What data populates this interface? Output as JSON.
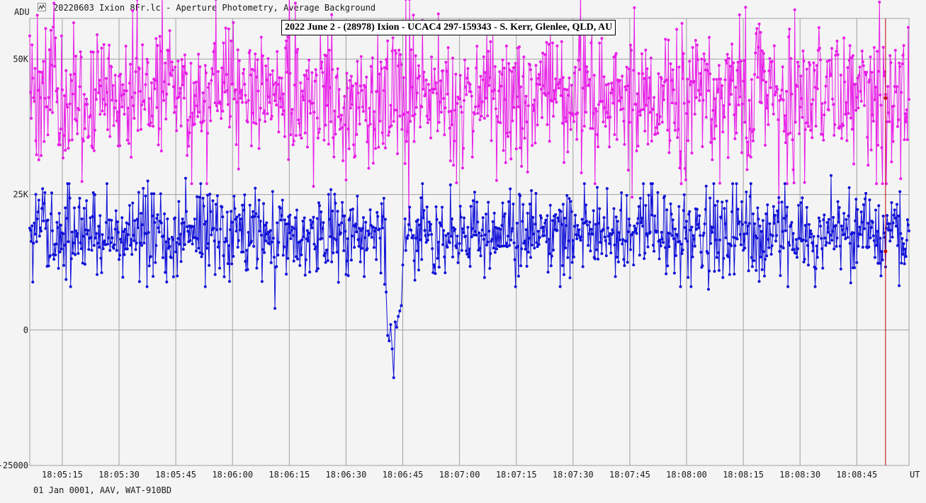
{
  "window": {
    "title": "20220603 Ixion 8Fr.lc - Aperture Photometry, Average Background",
    "icon": "lightcurve-app-icon"
  },
  "footer": {
    "text": "01 Jan 0001, AAV, WAT-910BD"
  },
  "colors": {
    "background": "#f4f4f4",
    "grid": "#a0a0a0",
    "series_upper": "#e81ee8",
    "series_lower": "#1010d8",
    "marker_line": "#c00000"
  },
  "chart_data": {
    "type": "line",
    "title": "2022 June 2 - (28978) Ixion - UCAC4 297-159343 - S. Kerr, Glenlee, QLD, AU",
    "ylabel": "ADU",
    "xlabel": "UT",
    "ylim": [
      -25000,
      57500
    ],
    "y_ticks": [
      {
        "value": 50000,
        "label": "50K"
      },
      {
        "value": 25000,
        "label": "25K"
      },
      {
        "value": 0,
        "label": "0"
      },
      {
        "value": -25000,
        "label": "-25000"
      }
    ],
    "xlim": [
      "18:05:06.4",
      "18:08:58.8"
    ],
    "x_ticks": [
      "18:05:15",
      "18:05:30",
      "18:05:45",
      "18:06:00",
      "18:06:15",
      "18:06:30",
      "18:06:45",
      "18:07:00",
      "18:07:15",
      "18:07:30",
      "18:07:45",
      "18:08:00",
      "18:08:15",
      "18:08:30",
      "18:08:45"
    ],
    "grid": true,
    "legend": "none",
    "cursor_time": "18:08:52.6",
    "series": [
      {
        "role": "comparison",
        "mean_adu": 43200,
        "noise_sd_adu": 6500,
        "dips": [
          {
            "time": "18:06:46.6",
            "value": 19500
          },
          {
            "time": "18:06:21.4",
            "value": 26500
          },
          {
            "time": "18:07:45.6",
            "value": 24500
          },
          {
            "time": "18:08:24.4",
            "value": 23500
          }
        ],
        "peaks": [
          {
            "time": "18:05:41.4",
            "value": 63800
          },
          {
            "time": "18:06:15.0",
            "value": 65000
          },
          {
            "time": "18:07:32.0",
            "value": 62800
          },
          {
            "time": "18:08:51.0",
            "value": 60500
          }
        ]
      },
      {
        "role": "target",
        "mean_adu": 17600,
        "noise_sd_adu": 4100,
        "occultation": {
          "start": "18:06:40.6",
          "end": "18:06:45.6",
          "points": [
            {
              "time": "18:06:40.6",
              "value": 7000
            },
            {
              "time": "18:06:41.0",
              "value": -1000
            },
            {
              "time": "18:06:41.4",
              "value": -2000
            },
            {
              "time": "18:06:41.8",
              "value": 1000
            },
            {
              "time": "18:06:42.2",
              "value": -3500
            },
            {
              "time": "18:06:42.6",
              "value": -8800
            },
            {
              "time": "18:06:43.0",
              "value": 1500
            },
            {
              "time": "18:06:43.4",
              "value": 500
            },
            {
              "time": "18:06:43.8",
              "value": 2500
            },
            {
              "time": "18:06:44.2",
              "value": 3500
            },
            {
              "time": "18:06:44.6",
              "value": 4500
            },
            {
              "time": "18:06:45.0",
              "value": 12000
            },
            {
              "time": "18:06:45.6",
              "value": 20500
            }
          ]
        },
        "outliers": [
          {
            "time": "18:06:11.2",
            "value": 4000
          },
          {
            "time": "18:05:37.6",
            "value": 27500
          },
          {
            "time": "18:05:47.6",
            "value": 28000
          },
          {
            "time": "18:08:38.2",
            "value": 28500
          },
          {
            "time": "18:08:05.8",
            "value": 7500
          }
        ]
      }
    ]
  }
}
